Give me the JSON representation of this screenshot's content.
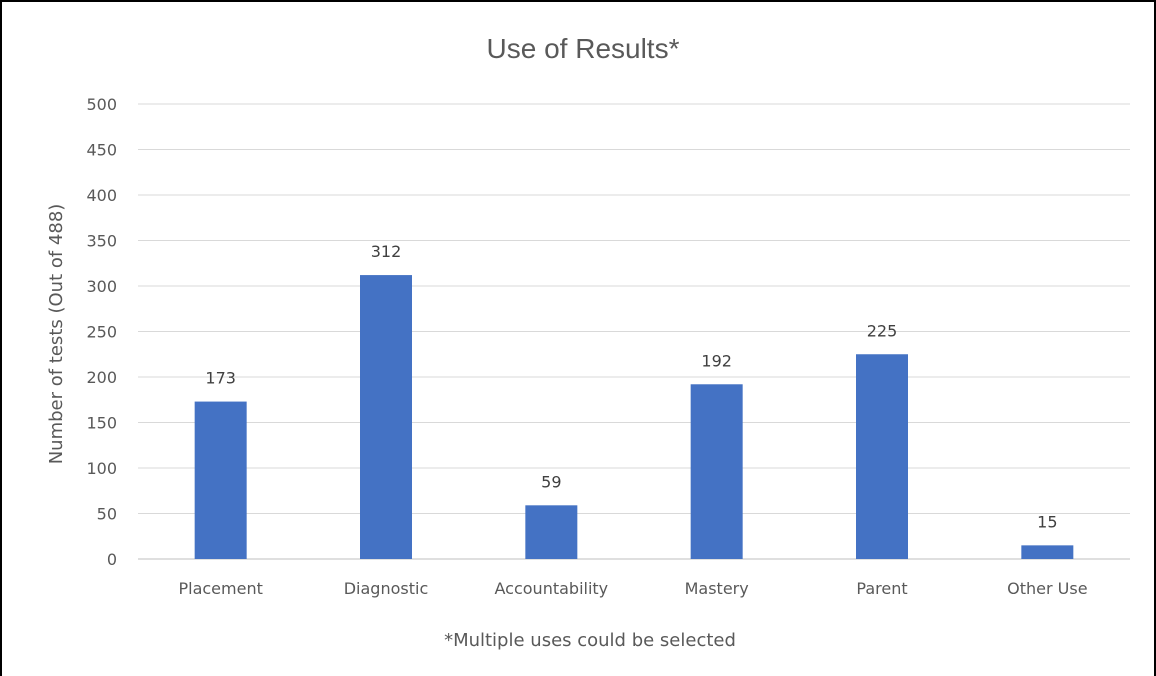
{
  "chart_data": {
    "type": "bar",
    "title": "Use of Results*",
    "xlabel": "*Multiple uses could be selected",
    "ylabel": "Number of tests (Out of 488)",
    "categories": [
      "Placement",
      "Diagnostic",
      "Accountability",
      "Mastery",
      "Parent",
      "Other Use"
    ],
    "values": [
      173,
      312,
      59,
      192,
      225,
      15
    ],
    "ylim": [
      0,
      500
    ],
    "yticks": [
      0,
      50,
      100,
      150,
      200,
      250,
      300,
      350,
      400,
      450,
      500
    ],
    "grid": true,
    "bar_color": "#4472C4",
    "data_labels": true
  }
}
